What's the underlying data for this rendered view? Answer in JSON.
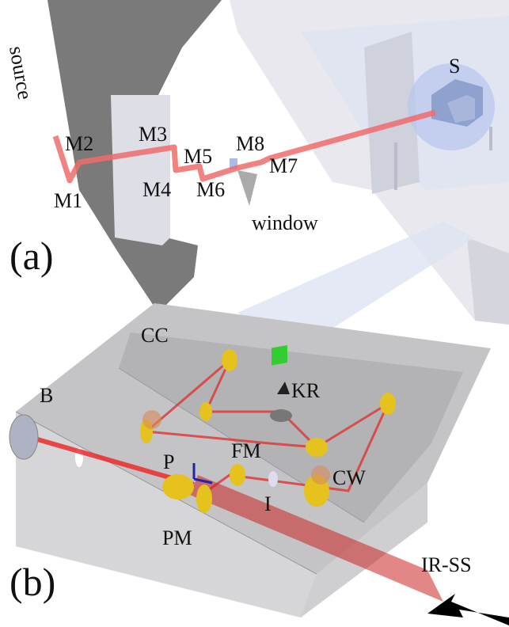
{
  "panel_a": {
    "label": "(a)",
    "labels": [
      "source",
      "M1",
      "M2",
      "M3",
      "M4",
      "M5",
      "M6",
      "M7",
      "M8",
      "window",
      "S"
    ]
  },
  "panel_b": {
    "label": "(b)",
    "labels": [
      "CC",
      "KR",
      "B",
      "FM",
      "P",
      "I",
      "CW",
      "PM",
      "IR-SS"
    ]
  }
}
